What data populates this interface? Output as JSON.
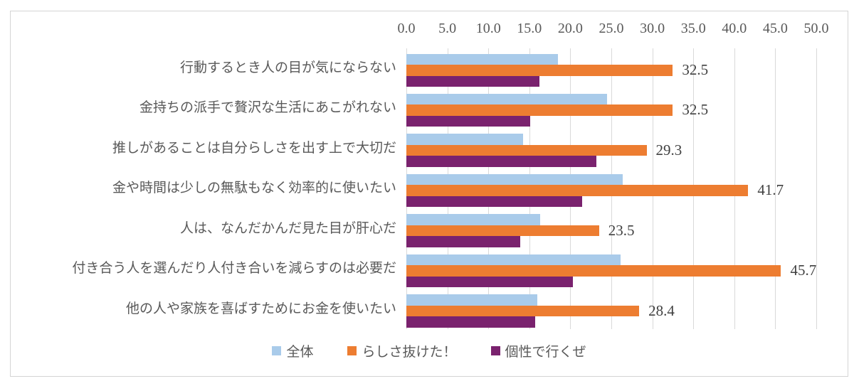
{
  "chart_data": {
    "type": "bar",
    "orientation": "horizontal",
    "title": "",
    "xlabel": "",
    "ylabel": "",
    "xlim": [
      0,
      50
    ],
    "x_ticks": [
      "0.0",
      "5.0",
      "10.0",
      "15.0",
      "20.0",
      "25.0",
      "30.0",
      "35.0",
      "40.0",
      "45.0",
      "50.0"
    ],
    "grid": "vertical-only",
    "legend_position": "bottom",
    "axis_position": "top",
    "categories": [
      "行動するとき人の目が気にならない",
      "金持ちの派手で贅沢な生活にあこがれない",
      "推しがあることは自分らしさを出す上で大切だ",
      "金や時間は少しの無駄もなく効率的に使いたい",
      "人は、なんだかんだ見た目が肝心だ",
      "付き合う人を選んだり人付き合いを減らすのは必要だ",
      "他の人や家族を喜ばすためにお金を使いたい"
    ],
    "series": [
      {
        "name": "全体",
        "color": "#a9cbea",
        "show_data_labels": false,
        "values": [
          18.5,
          24.5,
          14.2,
          26.4,
          16.3,
          26.1,
          16.0
        ]
      },
      {
        "name": "らしさ抜けた！",
        "color": "#ed7d31",
        "show_data_labels": true,
        "values": [
          32.5,
          32.5,
          29.3,
          41.7,
          23.5,
          45.7,
          28.4
        ]
      },
      {
        "name": "個性で行くぜ",
        "color": "#7a226e",
        "show_data_labels": false,
        "values": [
          16.2,
          15.1,
          23.2,
          21.4,
          13.9,
          20.3,
          15.7
        ]
      }
    ],
    "colors": {
      "gridline": "#d9d9d9",
      "axis_text": "#595959",
      "category_text": "#595959",
      "data_label_text": "#404040",
      "frame_border": "#d4d4d4",
      "background": "#ffffff"
    }
  }
}
